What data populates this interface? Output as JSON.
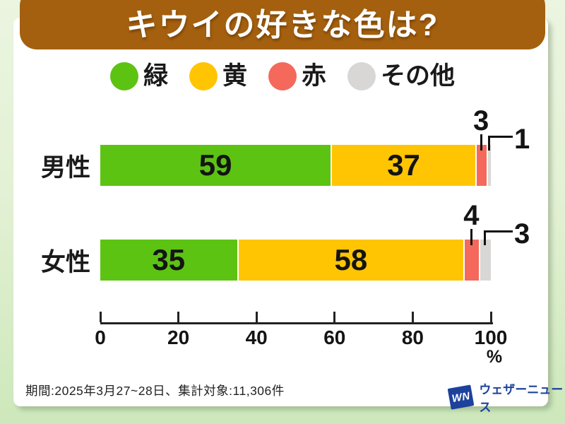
{
  "chart_data": {
    "type": "bar",
    "orientation": "horizontal",
    "stacked": true,
    "title": "キウイの好きな色は?",
    "categories": [
      "男性",
      "女性"
    ],
    "series": [
      {
        "name": "緑",
        "color": "#5CC313",
        "values": [
          59,
          35
        ]
      },
      {
        "name": "黄",
        "color": "#FFC503",
        "values": [
          37,
          58
        ]
      },
      {
        "name": "赤",
        "color": "#F4695B",
        "values": [
          3,
          4
        ]
      },
      {
        "name": "その他",
        "color": "#D8D7D5",
        "values": [
          1,
          3
        ]
      }
    ],
    "xlim": [
      0,
      100
    ],
    "x_ticks": [
      0,
      20,
      40,
      60,
      80,
      100
    ],
    "unit_label": "%",
    "grid": false,
    "legend_position": "top"
  },
  "legend": {
    "items": [
      {
        "label": "緑",
        "color": "#5CC313"
      },
      {
        "label": "黄",
        "color": "#FFC503"
      },
      {
        "label": "赤",
        "color": "#F4695B"
      },
      {
        "label": "その他",
        "color": "#D8D7D5"
      }
    ]
  },
  "styles": {
    "header_color": "#A4600E",
    "background_top": "#EBF5E0",
    "background_bottom": "#CDE8BB",
    "logo_color": "#1C429B"
  },
  "footer": {
    "note": "期間:2025年3月27~28日、集計対象:11,306件",
    "logo_mark": "WN",
    "logo_text": "ウェザーニュース"
  }
}
